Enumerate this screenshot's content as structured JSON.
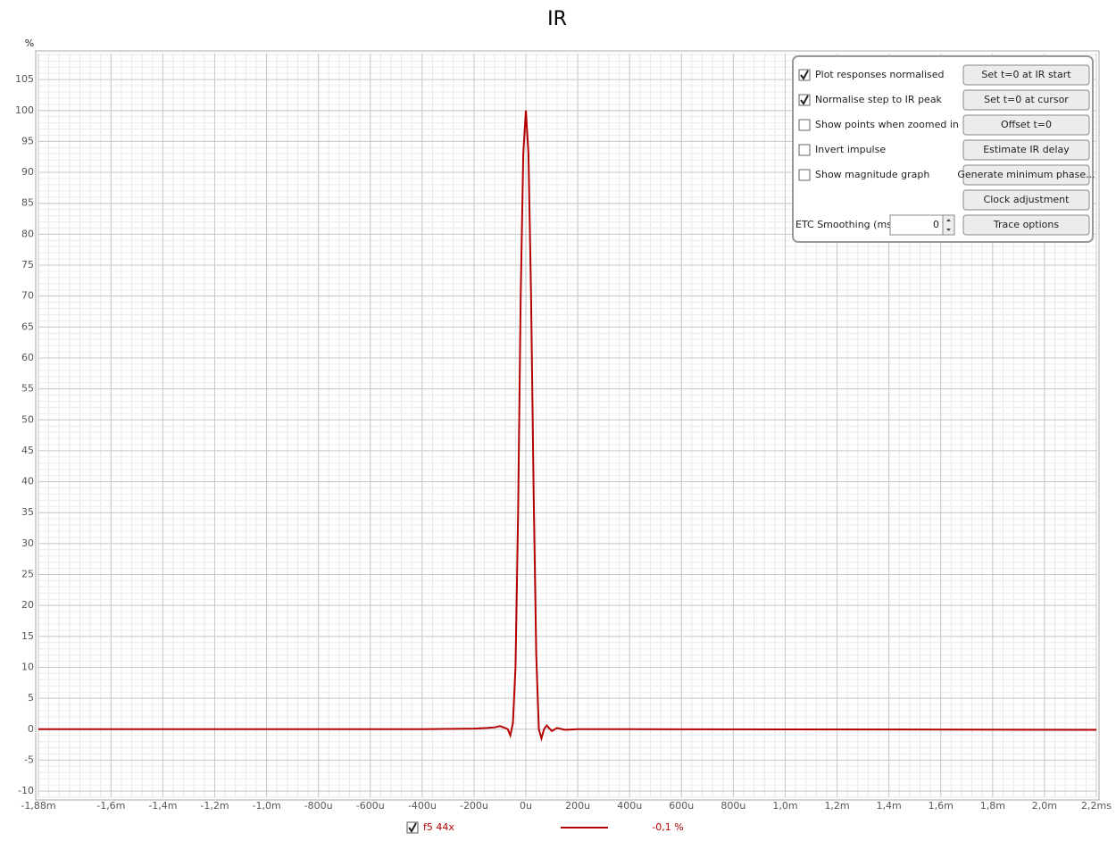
{
  "chart_data": {
    "type": "line",
    "title": "IR",
    "y_unit_label": "%",
    "x": [
      -1.88,
      -0.4,
      -0.2,
      -0.15,
      -0.12,
      -0.1,
      -0.08,
      -0.07,
      -0.06,
      -0.05,
      -0.04,
      -0.03,
      -0.02,
      -0.01,
      0,
      0.01,
      0.02,
      0.03,
      0.04,
      0.05,
      0.06,
      0.07,
      0.08,
      0.1,
      0.12,
      0.15,
      0.2,
      0.4,
      2.2
    ],
    "series": [
      {
        "name": "f5 44x",
        "color": "#b40000",
        "values": [
          0,
          0,
          0.1,
          0.2,
          0.3,
          0.5,
          0.2,
          0,
          -1,
          1,
          10,
          35,
          70,
          93,
          100,
          93,
          70,
          38,
          12,
          0,
          -1.5,
          0,
          0.6,
          -0.3,
          0.2,
          -0.1,
          0,
          0,
          -0.1
        ]
      }
    ],
    "xlim": [
      -1.88,
      2.2
    ],
    "xticks": [
      {
        "value": -1.88,
        "label": "-1,88m"
      },
      {
        "value": -1.6,
        "label": "-1,6m"
      },
      {
        "value": -1.4,
        "label": "-1,4m"
      },
      {
        "value": -1.2,
        "label": "-1,2m"
      },
      {
        "value": -1.0,
        "label": "-1,0m"
      },
      {
        "value": -0.8,
        "label": "-800u"
      },
      {
        "value": -0.6,
        "label": "-600u"
      },
      {
        "value": -0.4,
        "label": "-400u"
      },
      {
        "value": -0.2,
        "label": "-200u"
      },
      {
        "value": 0,
        "label": "0u"
      },
      {
        "value": 0.2,
        "label": "200u"
      },
      {
        "value": 0.4,
        "label": "400u"
      },
      {
        "value": 0.6,
        "label": "600u"
      },
      {
        "value": 0.8,
        "label": "800u"
      },
      {
        "value": 1.0,
        "label": "1,0m"
      },
      {
        "value": 1.2,
        "label": "1,2m"
      },
      {
        "value": 1.4,
        "label": "1,4m"
      },
      {
        "value": 1.6,
        "label": "1,6m"
      },
      {
        "value": 1.8,
        "label": "1,8m"
      },
      {
        "value": 2.0,
        "label": "2,0m"
      },
      {
        "value": 2.2,
        "label": "2,2ms"
      }
    ],
    "ylim": [
      -11,
      109.2
    ],
    "yticks": [
      -10,
      -5,
      0,
      5,
      10,
      15,
      20,
      25,
      30,
      35,
      40,
      45,
      50,
      55,
      60,
      65,
      70,
      75,
      80,
      85,
      90,
      95,
      100,
      105
    ],
    "grid": true,
    "legend_checked": true,
    "legend_readout": "-0,1 %"
  },
  "panel": {
    "checkboxes": [
      {
        "label": "Plot responses normalised",
        "checked": true
      },
      {
        "label": "Normalise step to IR peak",
        "checked": true
      },
      {
        "label": "Show points when zoomed in",
        "checked": false
      },
      {
        "label": "Invert impulse",
        "checked": false
      },
      {
        "label": "Show magnitude graph",
        "checked": false
      }
    ],
    "buttons": [
      "Set t=0 at IR start",
      "Set t=0 at cursor",
      "Offset t=0",
      "Estimate IR delay",
      "Generate minimum phase...",
      "Clock adjustment",
      "Trace options"
    ],
    "smoothing_label": "ETC Smoothing (ms):",
    "smoothing_value": 0
  }
}
